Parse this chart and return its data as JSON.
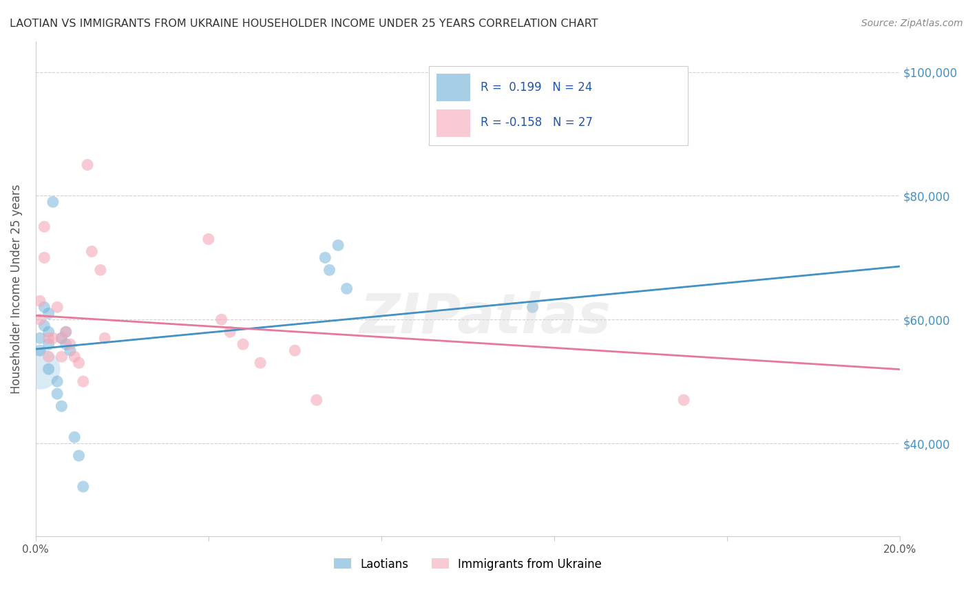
{
  "title": "LAOTIAN VS IMMIGRANTS FROM UKRAINE HOUSEHOLDER INCOME UNDER 25 YEARS CORRELATION CHART",
  "source": "Source: ZipAtlas.com",
  "ylabel": "Householder Income Under 25 years",
  "x_min": 0.0,
  "x_max": 0.2,
  "y_min": 25000,
  "y_max": 105000,
  "yticks": [
    40000,
    60000,
    80000,
    100000
  ],
  "ytick_labels": [
    "$40,000",
    "$60,000",
    "$80,000",
    "$100,000"
  ],
  "xticks": [
    0.0,
    0.04,
    0.08,
    0.12,
    0.16,
    0.2
  ],
  "xtick_labels": [
    "0.0%",
    "",
    "",
    "",
    "",
    "20.0%"
  ],
  "watermark": "ZIPatlas",
  "laotian_R": 0.199,
  "ukraine_R": -0.158,
  "blue_color": "#6baed6",
  "pink_color": "#f4a8b8",
  "blue_line_color": "#4292c6",
  "pink_line_color": "#e87899",
  "dashed_line_color": "#c0c0c0",
  "laotian_x": [
    0.001,
    0.001,
    0.002,
    0.002,
    0.003,
    0.003,
    0.003,
    0.003,
    0.004,
    0.005,
    0.005,
    0.006,
    0.006,
    0.007,
    0.007,
    0.008,
    0.009,
    0.01,
    0.011,
    0.067,
    0.068,
    0.07,
    0.072,
    0.115
  ],
  "laotian_y": [
    57000,
    55000,
    62000,
    59000,
    61000,
    58000,
    56000,
    52000,
    79000,
    50000,
    48000,
    46000,
    57000,
    58000,
    56000,
    55000,
    41000,
    38000,
    33000,
    70000,
    68000,
    72000,
    65000,
    62000
  ],
  "ukraine_x": [
    0.001,
    0.001,
    0.002,
    0.002,
    0.003,
    0.003,
    0.004,
    0.005,
    0.006,
    0.006,
    0.007,
    0.008,
    0.009,
    0.01,
    0.011,
    0.012,
    0.013,
    0.015,
    0.016,
    0.04,
    0.043,
    0.045,
    0.048,
    0.052,
    0.06,
    0.065,
    0.15
  ],
  "ukraine_y": [
    63000,
    60000,
    75000,
    70000,
    57000,
    54000,
    57000,
    62000,
    57000,
    54000,
    58000,
    56000,
    54000,
    53000,
    50000,
    85000,
    71000,
    68000,
    57000,
    73000,
    60000,
    58000,
    56000,
    53000,
    55000,
    47000,
    47000
  ],
  "background_color": "#ffffff",
  "grid_color": "#d0d0d0",
  "title_color": "#333333",
  "axis_label_color": "#555555",
  "right_axis_color": "#4292c6"
}
